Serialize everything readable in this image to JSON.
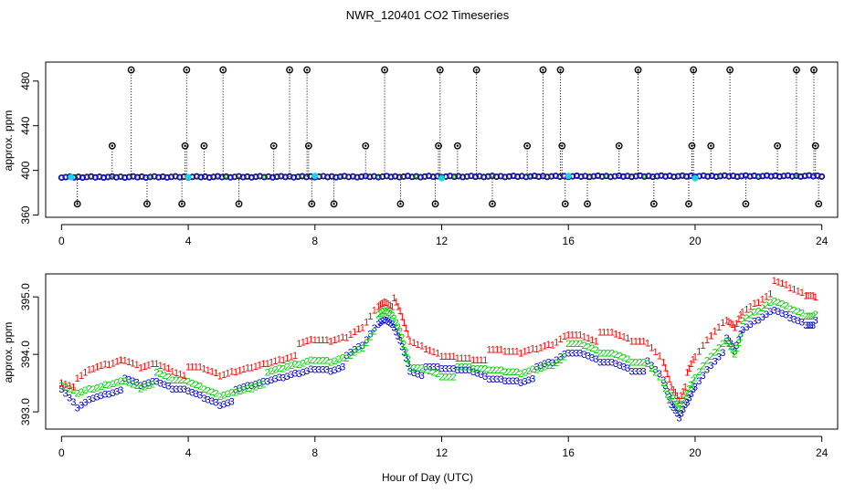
{
  "chart_data": {
    "title": "NWR_120401  CO2 Timeseries",
    "xlabel": "Hour of Day (UTC)",
    "panels": [
      {
        "type": "scatter",
        "ylabel": "approx. ppm",
        "xlim": [
          -0.5,
          24.5
        ],
        "ylim": [
          358,
          497
        ],
        "xticks": [
          "0",
          "4",
          "8",
          "12",
          "16",
          "20",
          "24"
        ],
        "yticks": [
          "360",
          "400",
          "440",
          "480"
        ],
        "baseline": {
          "series": "baseline",
          "value_start": 394,
          "value_end": 395,
          "x_start": 0,
          "x_end": 24
        },
        "outliers": [
          {
            "x": 0.5,
            "y": 370
          },
          {
            "x": 1.6,
            "y": 422
          },
          {
            "x": 2.2,
            "y": 490
          },
          {
            "x": 2.7,
            "y": 370
          },
          {
            "x": 3.8,
            "y": 370
          },
          {
            "x": 3.9,
            "y": 422
          },
          {
            "x": 3.95,
            "y": 490
          },
          {
            "x": 4.5,
            "y": 422
          },
          {
            "x": 5.1,
            "y": 490
          },
          {
            "x": 5.6,
            "y": 370
          },
          {
            "x": 6.7,
            "y": 422
          },
          {
            "x": 7.2,
            "y": 490
          },
          {
            "x": 7.75,
            "y": 490
          },
          {
            "x": 7.8,
            "y": 422
          },
          {
            "x": 7.9,
            "y": 370
          },
          {
            "x": 8.6,
            "y": 370
          },
          {
            "x": 9.6,
            "y": 422
          },
          {
            "x": 10.2,
            "y": 490
          },
          {
            "x": 10.7,
            "y": 370
          },
          {
            "x": 11.8,
            "y": 370
          },
          {
            "x": 11.9,
            "y": 422
          },
          {
            "x": 11.95,
            "y": 490
          },
          {
            "x": 12.5,
            "y": 422
          },
          {
            "x": 13.1,
            "y": 490
          },
          {
            "x": 13.6,
            "y": 370
          },
          {
            "x": 14.7,
            "y": 422
          },
          {
            "x": 15.2,
            "y": 490
          },
          {
            "x": 15.75,
            "y": 490
          },
          {
            "x": 15.8,
            "y": 422
          },
          {
            "x": 15.9,
            "y": 370
          },
          {
            "x": 16.6,
            "y": 370
          },
          {
            "x": 17.6,
            "y": 422
          },
          {
            "x": 18.2,
            "y": 490
          },
          {
            "x": 18.7,
            "y": 370
          },
          {
            "x": 19.8,
            "y": 370
          },
          {
            "x": 19.9,
            "y": 422
          },
          {
            "x": 19.95,
            "y": 490
          },
          {
            "x": 20.5,
            "y": 422
          },
          {
            "x": 21.1,
            "y": 490
          },
          {
            "x": 21.6,
            "y": 370
          },
          {
            "x": 22.6,
            "y": 422
          },
          {
            "x": 23.2,
            "y": 490
          },
          {
            "x": 23.75,
            "y": 490
          },
          {
            "x": 23.8,
            "y": 422
          },
          {
            "x": 23.9,
            "y": 370
          }
        ],
        "highlights": [
          {
            "x": 0.3,
            "y": 394
          },
          {
            "x": 4.0,
            "y": 394
          },
          {
            "x": 8.0,
            "y": 395
          },
          {
            "x": 12.0,
            "y": 393
          },
          {
            "x": 16.0,
            "y": 395
          },
          {
            "x": 20.0,
            "y": 393
          }
        ]
      },
      {
        "type": "line",
        "ylabel": "approx. ppm",
        "xlim": [
          -0.5,
          24.5
        ],
        "ylim": [
          392.7,
          395.4
        ],
        "xticks": [
          "0",
          "4",
          "8",
          "12",
          "16",
          "20",
          "24"
        ],
        "yticks": [
          "393.0",
          "394.0",
          "395.0"
        ],
        "x": [
          0,
          0.5,
          1,
          1.5,
          2,
          2.5,
          3,
          3.5,
          4,
          4.5,
          5,
          5.5,
          6,
          6.5,
          7,
          7.5,
          8,
          8.5,
          9,
          9.5,
          10,
          10.25,
          10.5,
          10.75,
          11,
          11.5,
          12,
          12.5,
          13,
          13.5,
          14,
          14.5,
          15,
          15.5,
          16,
          16.5,
          17,
          17.5,
          18,
          18.5,
          19,
          19.25,
          19.5,
          19.75,
          20,
          20.5,
          21,
          21.25,
          21.5,
          22,
          22.5,
          23,
          23.5,
          23.8
        ],
        "series": [
          {
            "name": "1",
            "glyph": "1",
            "values": [
              393.6,
              393.5,
              393.7,
              393.8,
              393.9,
              393.8,
              393.9,
              393.8,
              393.7,
              393.7,
              393.6,
              393.7,
              393.8,
              393.9,
              394.0,
              394.1,
              394.2,
              394.2,
              394.3,
              394.5,
              394.9,
              395.0,
              394.9,
              394.6,
              394.2,
              394.1,
              394.0,
              394.0,
              394.0,
              394.0,
              394.0,
              394.0,
              394.1,
              394.2,
              394.4,
              394.4,
              394.3,
              394.3,
              394.2,
              394.2,
              393.9,
              393.5,
              393.3,
              393.6,
              393.9,
              394.3,
              394.6,
              394.5,
              394.8,
              395.0,
              395.2,
              395.1,
              395.0,
              395.0
            ]
          },
          {
            "name": "2",
            "glyph": "2",
            "values": [
              393.4,
              393.3,
              393.4,
              393.5,
              393.6,
              393.5,
              393.6,
              393.5,
              393.5,
              393.4,
              393.3,
              393.4,
              393.5,
              393.6,
              393.7,
              393.8,
              393.9,
              393.9,
              394.0,
              394.2,
              394.6,
              394.7,
              394.6,
              394.3,
              393.8,
              393.8,
              393.7,
              393.7,
              393.7,
              393.7,
              393.7,
              393.7,
              393.8,
              393.9,
              394.1,
              394.1,
              394.0,
              394.0,
              393.9,
              393.9,
              393.6,
              393.2,
              393.0,
              393.3,
              393.6,
              394.0,
              394.3,
              394.1,
              394.5,
              394.7,
              394.9,
              394.8,
              394.7,
              394.7
            ]
          },
          {
            "name": "3",
            "glyph": "3",
            "values": [
              393.4,
              393.1,
              393.3,
              393.4,
              393.5,
              393.4,
              393.5,
              393.4,
              393.4,
              393.3,
              393.2,
              393.3,
              393.4,
              393.5,
              393.6,
              393.7,
              393.8,
              393.8,
              393.9,
              394.1,
              394.5,
              394.6,
              394.5,
              394.2,
              393.8,
              393.7,
              393.7,
              393.7,
              393.7,
              393.6,
              393.6,
              393.6,
              393.7,
              393.8,
              394.0,
              394.0,
              393.9,
              393.9,
              393.8,
              393.8,
              393.5,
              393.1,
              392.9,
              393.2,
              393.5,
              393.9,
              394.2,
              394.0,
              394.4,
              394.6,
              394.8,
              394.7,
              394.6,
              394.6
            ]
          }
        ],
        "series_colors": {
          "1": "#ff0000",
          "2": "#00cc00",
          "3": "#0000cc"
        }
      }
    ]
  }
}
